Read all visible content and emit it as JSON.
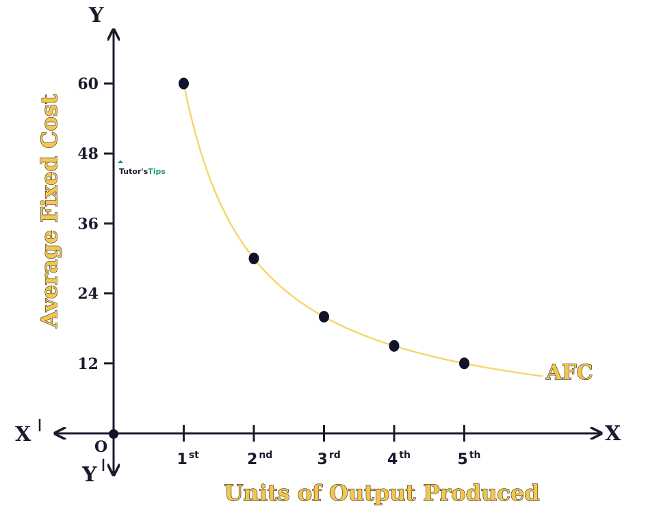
{
  "chart_data": {
    "type": "line",
    "xlabel": "Units of Output Produced",
    "ylabel": "Average Fixed Cost",
    "x_tick_labels": [
      {
        "num": "1",
        "sup": "st"
      },
      {
        "num": "2",
        "sup": "nd"
      },
      {
        "num": "3",
        "sup": "rd"
      },
      {
        "num": "4",
        "sup": "th"
      },
      {
        "num": "5",
        "sup": "th"
      }
    ],
    "y_ticks": [
      12,
      24,
      36,
      48,
      60
    ],
    "ylim": [
      0,
      60
    ],
    "xlim": [
      0,
      5
    ],
    "series": [
      {
        "name": "AFC",
        "color": "#f5d76e",
        "x": [
          1,
          2,
          3,
          4,
          5
        ],
        "y": [
          60,
          30,
          20,
          15,
          12
        ]
      }
    ],
    "axis_letters": {
      "y_top": "Y",
      "y_bottom": "Y",
      "x_right": "X",
      "x_left": "X",
      "origin": "O"
    }
  },
  "watermark": {
    "text_a": "Tutor's",
    "text_b": "Tips"
  },
  "colors": {
    "axis": "#1a1a2e",
    "curve": "#f5d76e",
    "label_fill": "#f5c64a",
    "point": "#12122a"
  }
}
